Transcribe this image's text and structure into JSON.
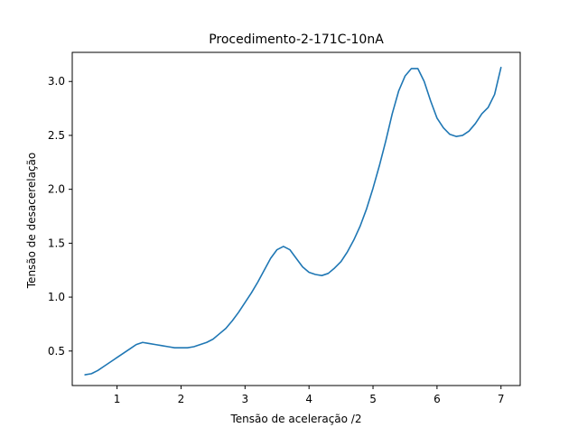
{
  "chart_data": {
    "type": "line",
    "title": "Procedimento-2-171C-10nA",
    "xlabel": "Tensão de aceleração /2",
    "ylabel": "Tensão de desacerelação",
    "xlim": [
      0.3,
      7.3
    ],
    "ylim": [
      0.18,
      3.27
    ],
    "xticks": [
      1,
      2,
      3,
      4,
      5,
      6,
      7
    ],
    "yticks": [
      0.5,
      1.0,
      1.5,
      2.0,
      2.5,
      3.0
    ],
    "xtick_labels": [
      "1",
      "2",
      "3",
      "4",
      "5",
      "6",
      "7"
    ],
    "ytick_labels": [
      "0.5",
      "1.0",
      "1.5",
      "2.0",
      "2.5",
      "3.0"
    ],
    "grid": false,
    "series": [
      {
        "color": "#1f77b4",
        "x": [
          0.5,
          0.6,
          0.7,
          0.8,
          0.9,
          1.0,
          1.1,
          1.2,
          1.3,
          1.4,
          1.5,
          1.6,
          1.7,
          1.8,
          1.9,
          2.0,
          2.1,
          2.2,
          2.3,
          2.4,
          2.5,
          2.6,
          2.7,
          2.8,
          2.9,
          3.0,
          3.1,
          3.2,
          3.3,
          3.4,
          3.5,
          3.6,
          3.7,
          3.8,
          3.9,
          4.0,
          4.1,
          4.2,
          4.3,
          4.4,
          4.5,
          4.6,
          4.7,
          4.8,
          4.9,
          5.0,
          5.1,
          5.2,
          5.3,
          5.4,
          5.5,
          5.6,
          5.7,
          5.8,
          5.9,
          6.0,
          6.1,
          6.2,
          6.3,
          6.4,
          6.5,
          6.6,
          6.7,
          6.8,
          6.9,
          7.0
        ],
        "y": [
          0.28,
          0.29,
          0.32,
          0.36,
          0.4,
          0.44,
          0.48,
          0.52,
          0.56,
          0.58,
          0.57,
          0.56,
          0.55,
          0.54,
          0.53,
          0.53,
          0.53,
          0.54,
          0.56,
          0.58,
          0.61,
          0.66,
          0.71,
          0.78,
          0.86,
          0.95,
          1.04,
          1.14,
          1.25,
          1.36,
          1.44,
          1.47,
          1.44,
          1.36,
          1.28,
          1.23,
          1.21,
          1.2,
          1.22,
          1.27,
          1.33,
          1.42,
          1.53,
          1.66,
          1.82,
          2.01,
          2.22,
          2.45,
          2.7,
          2.91,
          3.05,
          3.12,
          3.12,
          3.0,
          2.82,
          2.66,
          2.57,
          2.51,
          2.49,
          2.5,
          2.54,
          2.61,
          2.7,
          2.76,
          2.88,
          3.13
        ]
      }
    ]
  }
}
